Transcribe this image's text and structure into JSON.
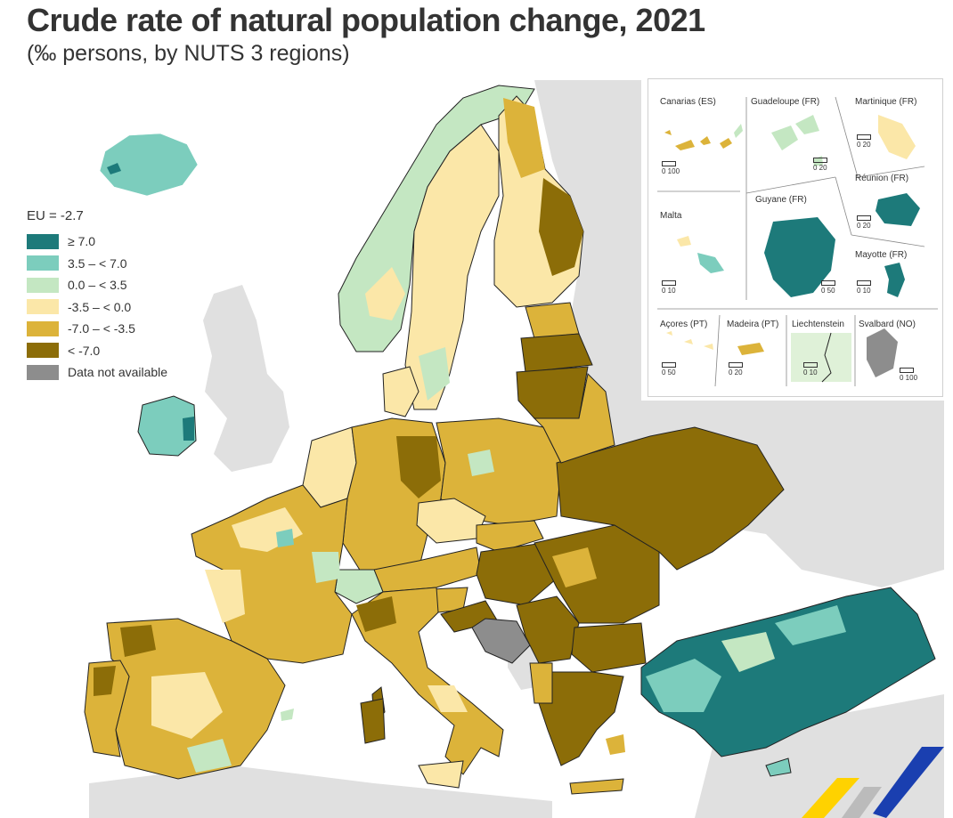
{
  "title": "Crude rate of natural population change, 2021",
  "subtitle": "(‰ persons, by NUTS 3 regions)",
  "legend": {
    "title": "EU = -2.7",
    "items": [
      {
        "label": "≥ 7.0",
        "color": "#1d7a7a"
      },
      {
        "label": "3.5 – < 7.0",
        "color": "#7ccdbd"
      },
      {
        "label": "0.0 – < 3.5",
        "color": "#c4e7c2"
      },
      {
        "label": "-3.5 – < 0.0",
        "color": "#fbe7a8"
      },
      {
        "label": "-7.0 – < -3.5",
        "color": "#dcb33a"
      },
      {
        "label": "< -7.0",
        "color": "#8c6d08"
      },
      {
        "label": "Data not available",
        "color": "#8d8d8d"
      }
    ]
  },
  "colors": {
    "sea": "#ffffff",
    "non_eu_land": "#e0e0e0",
    "border": "#222222"
  },
  "insets": [
    {
      "name": "Canarias (ES)",
      "scale": "0   100"
    },
    {
      "name": "Guadeloupe (FR)",
      "scale": "0   20"
    },
    {
      "name": "Martinique (FR)",
      "scale": "0   20"
    },
    {
      "name": "Réunion (FR)",
      "scale": "0   20"
    },
    {
      "name": "Guyane (FR)",
      "scale": "0   50"
    },
    {
      "name": "Malta",
      "scale": "0   10"
    },
    {
      "name": "Mayotte (FR)",
      "scale": "0   10"
    },
    {
      "name": "Açores (PT)",
      "scale": "0   50"
    },
    {
      "name": "Madeira (PT)",
      "scale": "0   20"
    },
    {
      "name": "Liechtenstein",
      "scale": "0   10"
    },
    {
      "name": "Svalbard (NO)",
      "scale": "0 100"
    }
  ]
}
